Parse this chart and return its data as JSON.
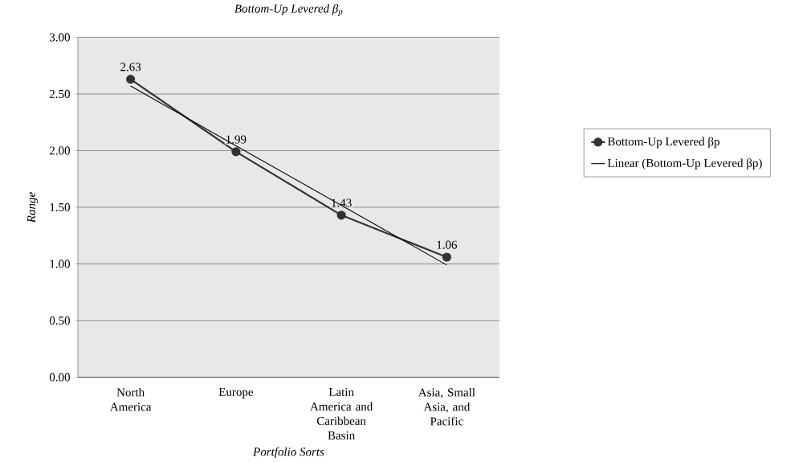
{
  "chart_data": {
    "type": "line",
    "title": "Bottom-Up Levered β$_{p}$",
    "xlabel": "Portfolio Sorts",
    "ylabel": "Range",
    "categories": [
      "North America",
      "Europe",
      "Latin America and Caribbean Basin",
      "Asia, Small Asia, and Pacific"
    ],
    "series": [
      {
        "name": "Bottom-Up Levered βp",
        "color": "#333333",
        "values": [
          2.63,
          1.99,
          1.43,
          1.06
        ],
        "value_labels": [
          "2.63",
          "1.99",
          "1.43",
          "1.06"
        ]
      },
      {
        "name": "Linear (Bottom-Up Levered βp)",
        "type": "line",
        "marker": "none",
        "color": "#000000",
        "values": [
          2.57,
          null,
          null,
          0.99
        ]
      }
    ],
    "ylim": [
      0,
      3
    ],
    "yticks": [
      {
        "value": 0,
        "label": "0.00"
      },
      {
        "value": 0.5,
        "label": "0.50"
      },
      {
        "value": 1,
        "label": "1.00"
      },
      {
        "value": 1.5,
        "label": "1.50"
      },
      {
        "value": 2,
        "label": "2.00"
      },
      {
        "value": 2.5,
        "label": "2.50"
      },
      {
        "value": 3,
        "label": "3.00"
      }
    ],
    "grid": "y",
    "legend": "right",
    "marker": "circle",
    "line_style": "solid"
  }
}
